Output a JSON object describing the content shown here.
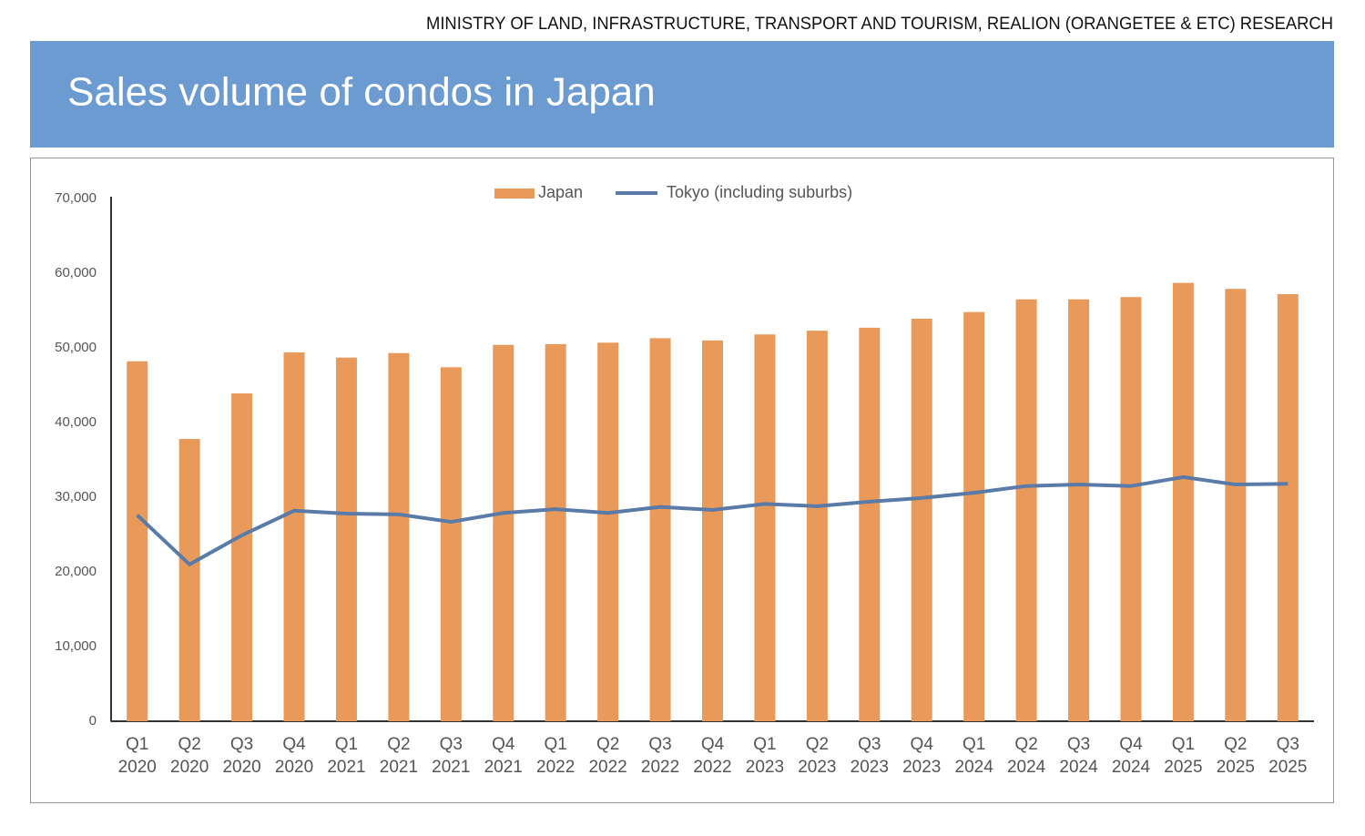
{
  "source": "MINISTRY OF LAND, INFRASTRUCTURE, TRANSPORT AND TOURISM, REALION (ORANGETEE & ETC) RESEARCH",
  "chart_data": {
    "type": "bar-line",
    "title": "Sales volume of condos in Japan",
    "categories": [
      [
        "Q1",
        "2020"
      ],
      [
        "Q2",
        "2020"
      ],
      [
        "Q3",
        "2020"
      ],
      [
        "Q4",
        "2020"
      ],
      [
        "Q1",
        "2021"
      ],
      [
        "Q2",
        "2021"
      ],
      [
        "Q3",
        "2021"
      ],
      [
        "Q4",
        "2021"
      ],
      [
        "Q1",
        "2022"
      ],
      [
        "Q2",
        "2022"
      ],
      [
        "Q3",
        "2022"
      ],
      [
        "Q4",
        "2022"
      ],
      [
        "Q1",
        "2023"
      ],
      [
        "Q2",
        "2023"
      ],
      [
        "Q3",
        "2023"
      ],
      [
        "Q4",
        "2023"
      ],
      [
        "Q1",
        "2024"
      ],
      [
        "Q2",
        "2024"
      ],
      [
        "Q3",
        "2024"
      ],
      [
        "Q4",
        "2024"
      ],
      [
        "Q1",
        "2025"
      ],
      [
        "Q2",
        "2025"
      ],
      [
        "Q3",
        "2025"
      ]
    ],
    "series": [
      {
        "name": "Japan",
        "type": "bar",
        "color": "#e99a5a",
        "values": [
          48200,
          37800,
          43900,
          49400,
          48700,
          49300,
          47400,
          50400,
          50500,
          50700,
          51300,
          51000,
          51800,
          52300,
          52700,
          53900,
          54800,
          56500,
          56500,
          56800,
          58700,
          57900,
          57200
        ]
      },
      {
        "name": "Tokyo (including suburbs)",
        "type": "line",
        "color": "#5a7aa8",
        "values": [
          27600,
          21000,
          24900,
          28200,
          27800,
          27700,
          26700,
          27900,
          28400,
          27900,
          28700,
          28300,
          29100,
          28800,
          29400,
          29900,
          30600,
          31500,
          31700,
          31500,
          32700,
          31700,
          31800
        ]
      }
    ],
    "ylim": [
      0,
      70000
    ],
    "yticks": [
      0,
      {
        "value": 10000,
        "label": "10,000"
      },
      {
        "value": 20000,
        "label": "20,000"
      },
      {
        "value": 30000,
        "label": "30,000"
      },
      {
        "value": 40000,
        "label": "40,000"
      },
      {
        "value": 50000,
        "label": "50,000"
      },
      {
        "value": 60000,
        "label": "60,000"
      },
      {
        "value": 70000,
        "label": "70,000"
      }
    ],
    "grid": false,
    "legend": "top"
  }
}
